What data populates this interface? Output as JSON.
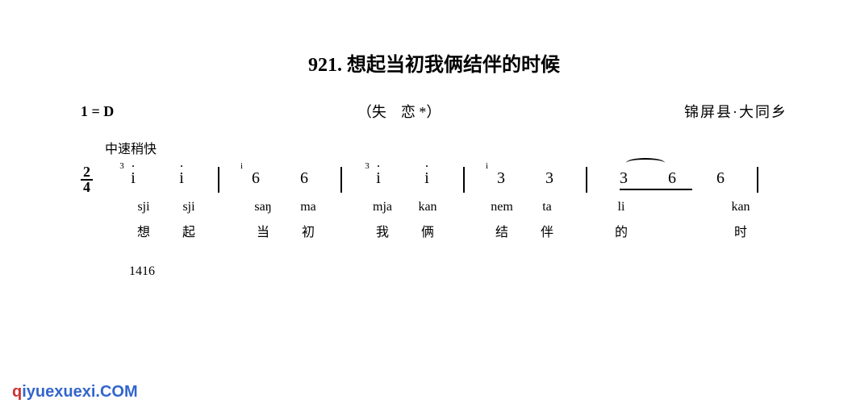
{
  "title": {
    "number": "921.",
    "text": "想起当初我俩结伴的时候"
  },
  "header": {
    "key": "1 = D",
    "subtitle": "（失　恋 *）",
    "location": "锦屏县·大同乡"
  },
  "tempo": "中速稍快",
  "timeSignature": {
    "numerator": "2",
    "denominator": "4"
  },
  "notation": {
    "measures": [
      {
        "notes": [
          {
            "v": "i",
            "dotHigh": true,
            "grace": "3"
          },
          {
            "v": "i",
            "dotHigh": true
          }
        ]
      },
      {
        "notes": [
          {
            "v": "6",
            "grace": "i"
          },
          {
            "v": "6"
          }
        ]
      },
      {
        "notes": [
          {
            "v": "i",
            "dotHigh": true,
            "grace": "3"
          },
          {
            "v": "i",
            "dotHigh": true
          }
        ]
      },
      {
        "notes": [
          {
            "v": "3",
            "grace": "i"
          },
          {
            "v": "3"
          }
        ]
      },
      {
        "notes": [
          {
            "v": "3",
            "tie": true,
            "beam": true
          },
          {
            "v": "6",
            "beam": true
          },
          {
            "v": "6"
          }
        ]
      }
    ]
  },
  "lyrics": {
    "phonetic": [
      "sji",
      "sji",
      "saŋ",
      "ma",
      "mja",
      "kan",
      "nem",
      "ta",
      "li",
      "",
      "kan"
    ],
    "chinese": [
      "想",
      "起",
      "当",
      "初",
      "我",
      "俩",
      "结",
      "伴",
      "的",
      "",
      "时"
    ]
  },
  "pageNumber": "1416",
  "watermark": {
    "red": "q",
    "blue": "iyuexuexi",
    "suffix": ".COM"
  },
  "colors": {
    "text": "#000000",
    "background": "#ffffff",
    "wmRed": "#cc3333",
    "wmBlue": "#3366cc"
  },
  "cellWidths": {
    "note": 60,
    "lyric": 56
  }
}
